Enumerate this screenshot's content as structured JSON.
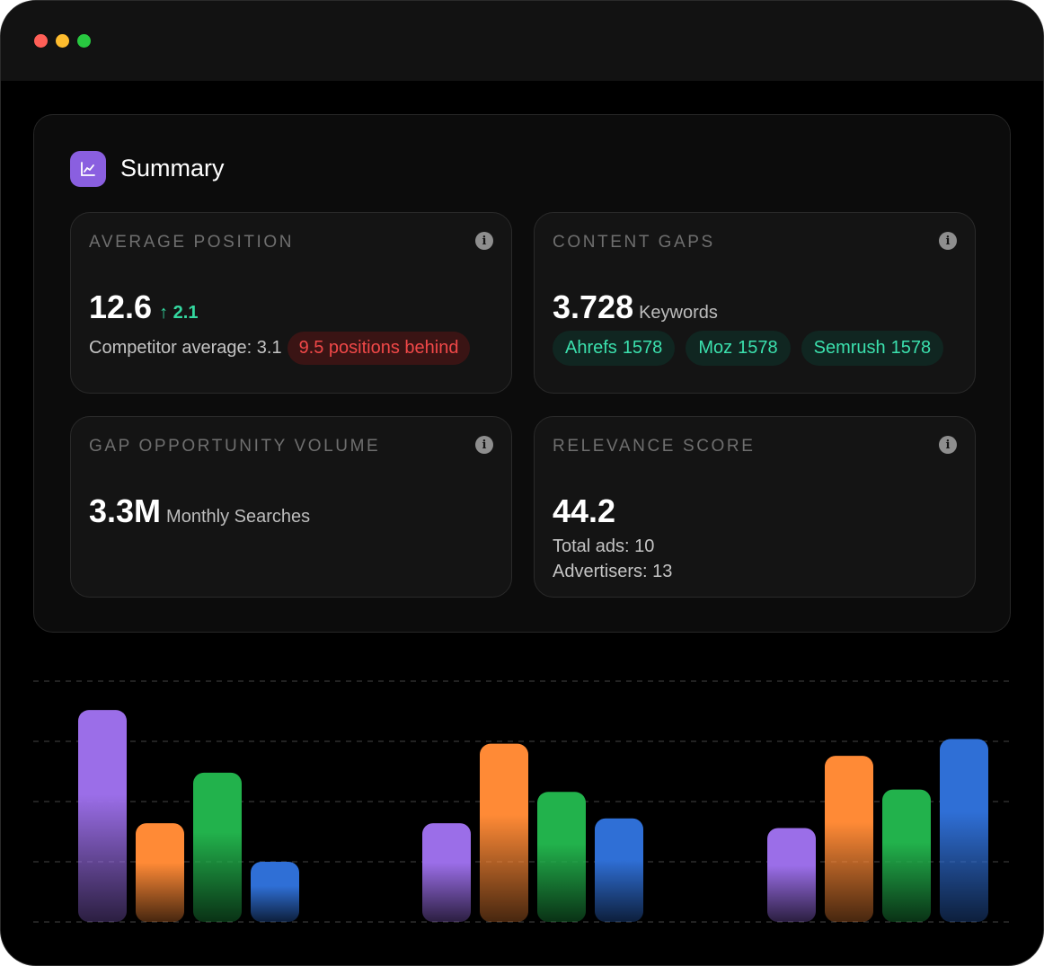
{
  "window": {
    "controls": [
      "close",
      "minimize",
      "maximize"
    ],
    "colors": {
      "close": "#ff5f57",
      "minimize": "#febc2e",
      "maximize": "#28c840"
    }
  },
  "summary": {
    "title": "Summary",
    "icon": "trend-chart-icon",
    "accent": "#8a5fe0"
  },
  "cards": {
    "avg_position": {
      "label": "AVERAGE POSITION",
      "value": "12.6",
      "delta": "2.1",
      "competitor_text": "Competitor average: 3.1",
      "badge": "9.5 positions behind"
    },
    "content_gaps": {
      "label": "CONTENT GAPS",
      "value": "3.728",
      "unit": "Keywords",
      "pills": [
        {
          "name": "Ahrefs",
          "count": "1578"
        },
        {
          "name": "Moz",
          "count": "1578"
        },
        {
          "name": "Semrush",
          "count": "1578"
        }
      ]
    },
    "gap_volume": {
      "label": "GAP OPPORTUNITY VOLUME",
      "value": "3.3M",
      "unit": "Monthly Searches"
    },
    "relevance": {
      "label": "RELEVANCE SCORE",
      "value": "44.2",
      "total_ads": "Total ads: 10",
      "advertisers": "Advertisers: 13"
    }
  },
  "chart_data": {
    "type": "bar",
    "categories": [
      "",
      "",
      ""
    ],
    "series_colors": [
      "#9b6ee8",
      "#ff8a36",
      "#22b24c",
      "#2f6fd6"
    ],
    "series": [
      {
        "values": [
          0.88,
          0.41,
          0.39
        ]
      },
      {
        "values": [
          0.41,
          0.74,
          0.69
        ]
      },
      {
        "values": [
          0.62,
          0.54,
          0.55
        ]
      },
      {
        "values": [
          0.25,
          0.43,
          0.76
        ]
      }
    ],
    "ylim": [
      0,
      1
    ],
    "grid": true
  }
}
